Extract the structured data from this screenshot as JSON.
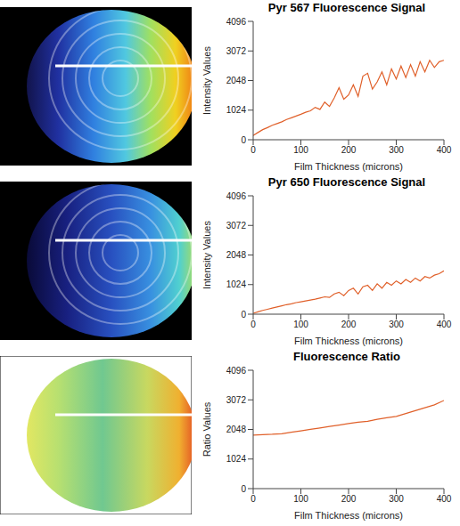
{
  "chart_data": [
    {
      "type": "line",
      "title": "Pyr 567 Fluorescence Signal",
      "x_label": "Film Thickness (microns)",
      "y_label": "Intensity Values",
      "color": "#e0602a",
      "x": [
        0,
        10,
        20,
        30,
        40,
        50,
        60,
        70,
        80,
        90,
        100,
        110,
        120,
        130,
        140,
        150,
        160,
        170,
        180,
        190,
        200,
        210,
        220,
        230,
        240,
        250,
        260,
        270,
        280,
        290,
        300,
        310,
        320,
        330,
        340,
        350,
        360,
        370,
        380,
        390,
        400
      ],
      "values": [
        150,
        250,
        350,
        420,
        500,
        560,
        620,
        700,
        760,
        820,
        880,
        950,
        1000,
        1120,
        1050,
        1300,
        1150,
        1450,
        1800,
        1400,
        1550,
        1900,
        1500,
        2200,
        2300,
        1750,
        2000,
        2350,
        1900,
        2450,
        2100,
        2550,
        2150,
        2600,
        2200,
        2700,
        2350,
        2750,
        2500,
        2700,
        2750
      ],
      "xlim": [
        0,
        400
      ],
      "xticks": [
        0,
        100,
        200,
        300,
        400
      ],
      "ylim": [
        0,
        4096
      ],
      "yticks": [
        0,
        1024,
        2048,
        3072,
        4096
      ]
    },
    {
      "type": "line",
      "title": "Pyr 650 Fluorescence Signal",
      "x_label": "Film Thickness (microns)",
      "y_label": "Intensity Values",
      "color": "#e0602a",
      "x": [
        0,
        10,
        20,
        30,
        40,
        50,
        60,
        70,
        80,
        90,
        100,
        110,
        120,
        130,
        140,
        150,
        160,
        170,
        180,
        190,
        200,
        210,
        220,
        230,
        240,
        250,
        260,
        270,
        280,
        290,
        300,
        310,
        320,
        330,
        340,
        350,
        360,
        370,
        380,
        390,
        400
      ],
      "values": [
        30,
        80,
        130,
        170,
        210,
        250,
        290,
        330,
        360,
        400,
        430,
        460,
        490,
        520,
        560,
        600,
        580,
        700,
        760,
        640,
        820,
        900,
        700,
        950,
        1000,
        820,
        1050,
        900,
        1100,
        1000,
        1150,
        1050,
        1200,
        1100,
        1250,
        1150,
        1300,
        1250,
        1350,
        1400,
        1500
      ],
      "xlim": [
        0,
        400
      ],
      "xticks": [
        0,
        100,
        200,
        300,
        400
      ],
      "ylim": [
        0,
        4096
      ],
      "yticks": [
        0,
        1024,
        2048,
        3072,
        4096
      ]
    },
    {
      "type": "line",
      "title": "Fluorescence Ratio",
      "x_label": "Film Thickness (microns)",
      "y_label": "Ratio Values",
      "color": "#e0602a",
      "x": [
        0,
        20,
        40,
        60,
        80,
        100,
        120,
        140,
        160,
        180,
        200,
        220,
        240,
        260,
        280,
        300,
        320,
        340,
        360,
        380,
        400
      ],
      "values": [
        1850,
        1870,
        1880,
        1900,
        1950,
        2000,
        2050,
        2100,
        2150,
        2200,
        2250,
        2300,
        2330,
        2400,
        2450,
        2500,
        2600,
        2700,
        2800,
        2900,
        3050
      ],
      "xlim": [
        0,
        400
      ],
      "xticks": [
        0,
        100,
        200,
        300,
        400
      ],
      "ylim": [
        0,
        4096
      ],
      "yticks": [
        0,
        1024,
        2048,
        3072,
        4096
      ]
    }
  ]
}
